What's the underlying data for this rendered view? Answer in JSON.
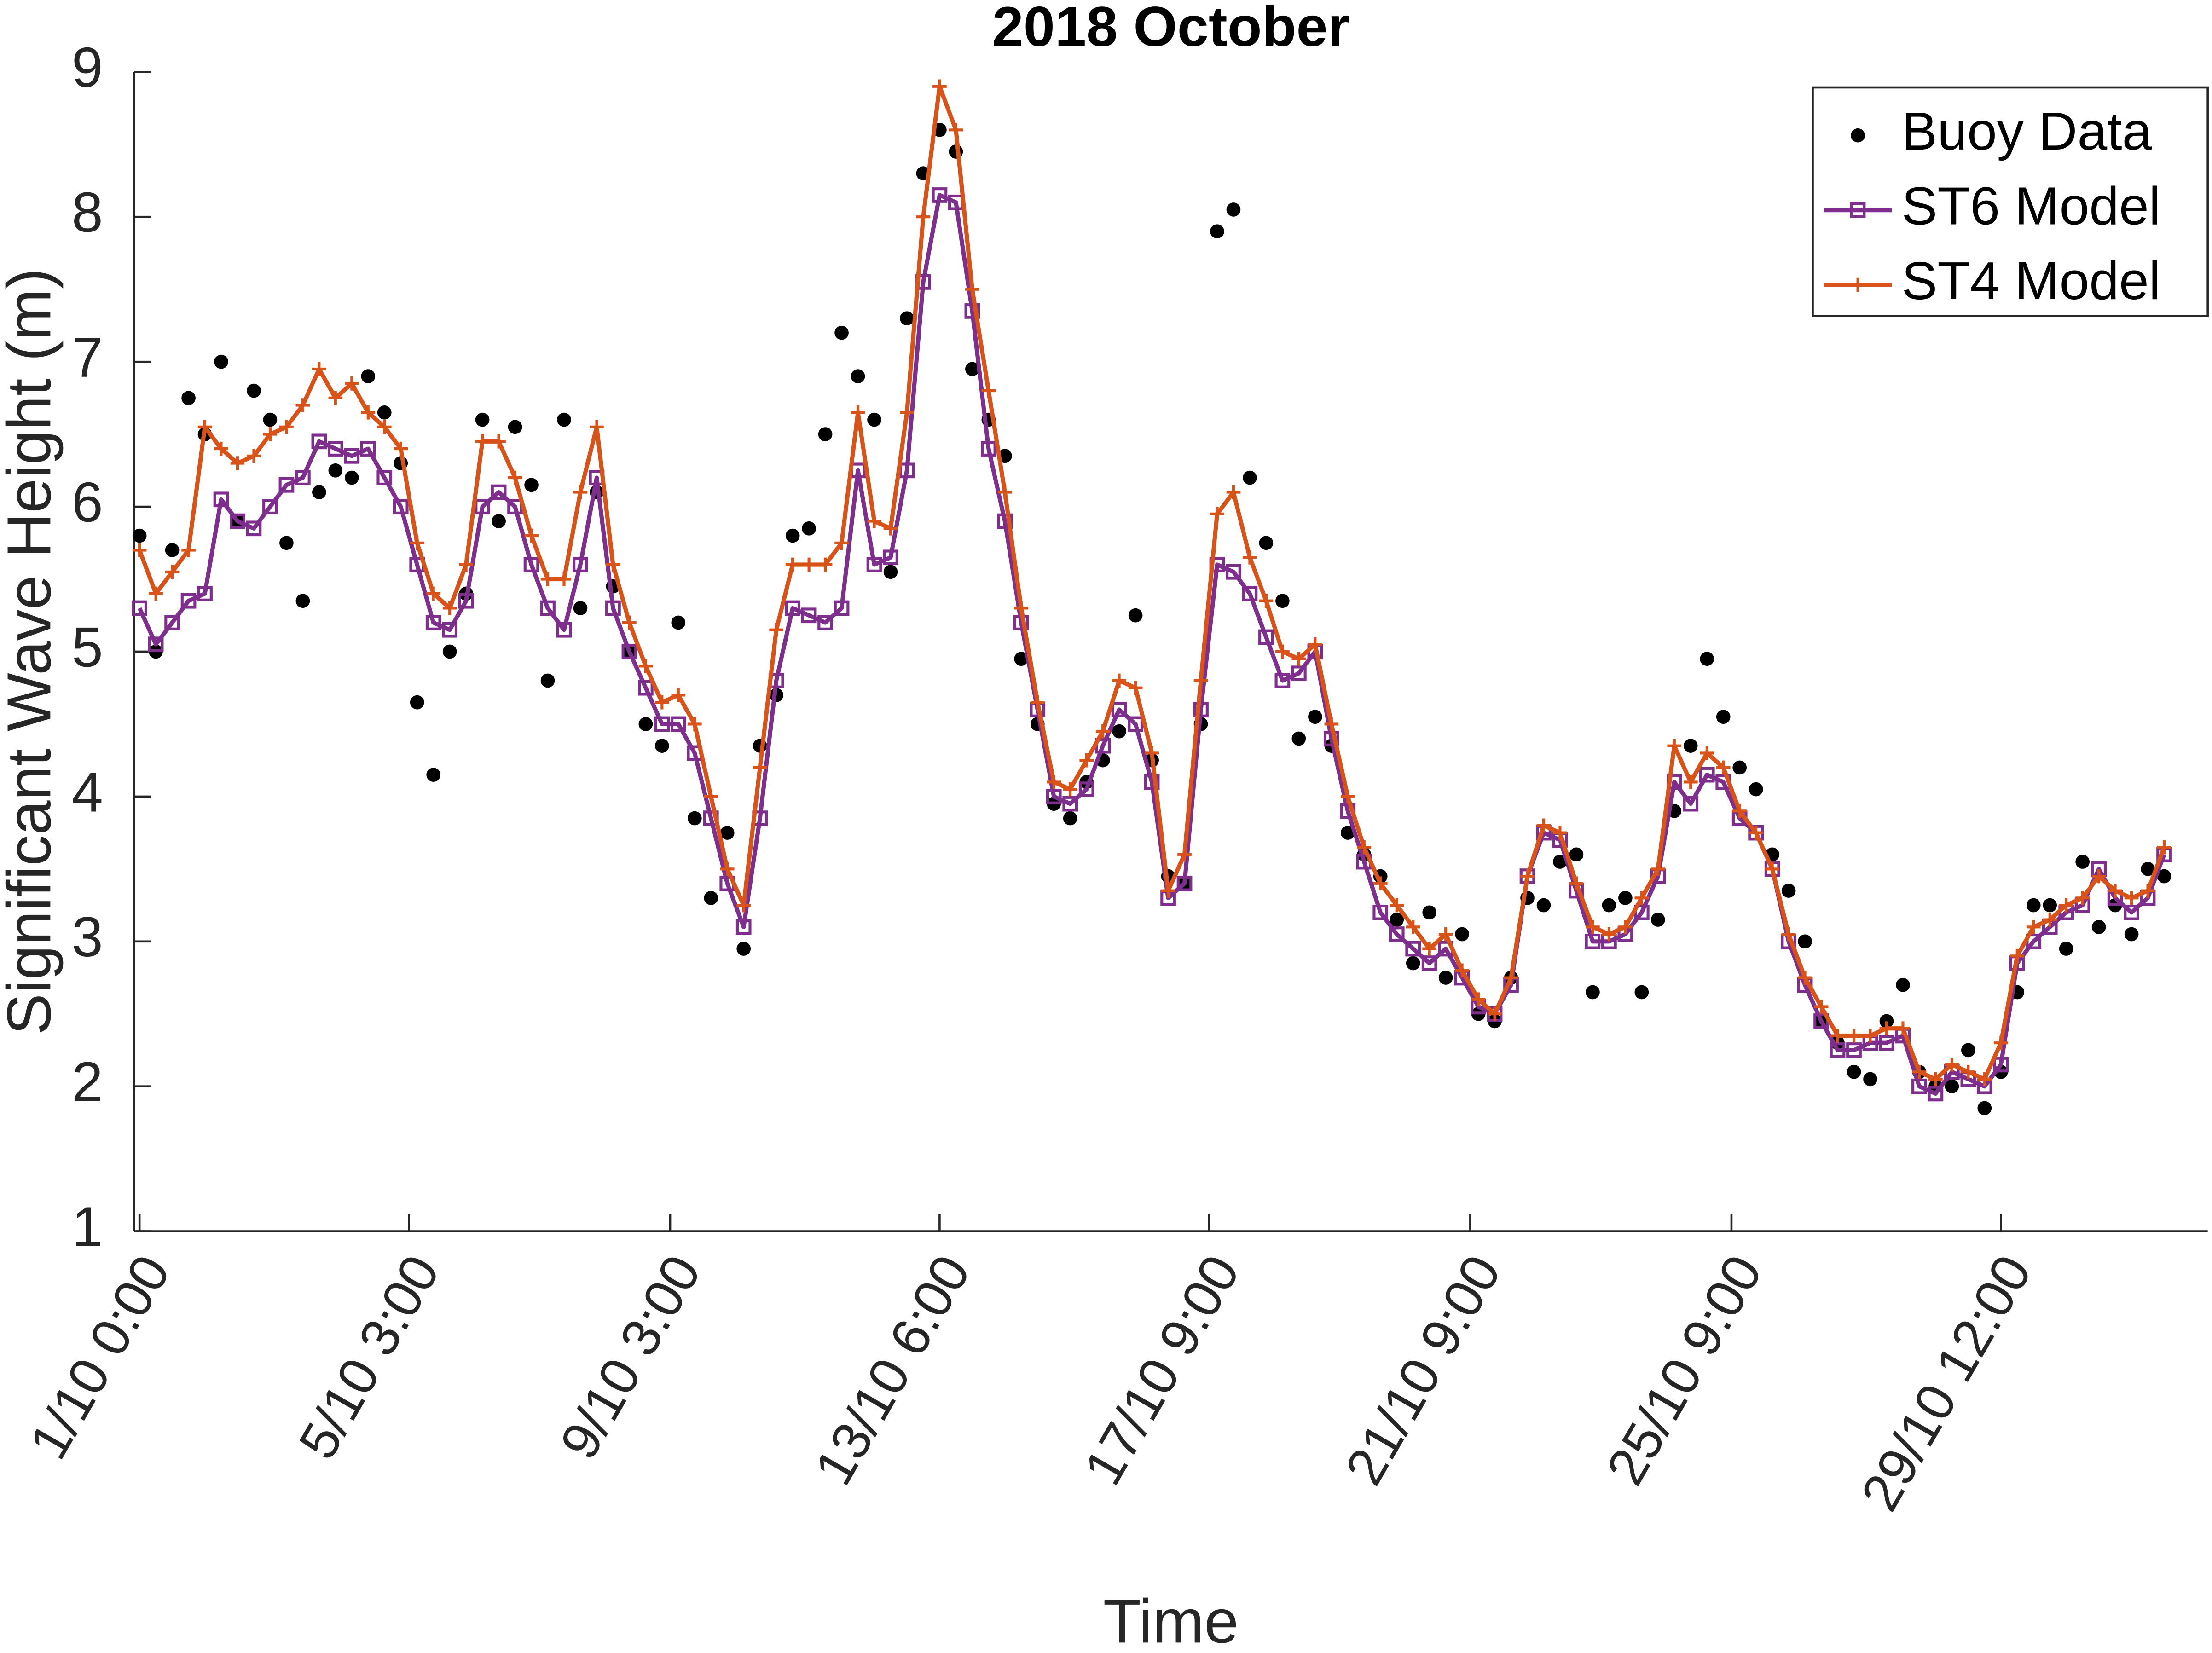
{
  "chart_data": {
    "type": "line",
    "title": "2018 October",
    "x_label": "Time",
    "y_label": "Significant Wave Height (m)",
    "x": [
      0,
      6,
      12,
      18,
      24,
      30,
      36,
      42,
      48,
      54,
      60,
      66,
      72,
      78,
      84,
      90,
      96,
      102,
      108,
      114,
      120,
      126,
      132,
      138,
      144,
      150,
      156,
      162,
      168,
      174,
      180,
      186,
      192,
      198,
      204,
      210,
      216,
      222,
      228,
      234,
      240,
      246,
      252,
      258,
      264,
      270,
      276,
      282,
      288,
      294,
      300,
      306,
      312,
      318,
      324,
      330,
      336,
      342,
      348,
      354,
      360,
      366,
      372,
      378,
      384,
      390,
      396,
      402,
      408,
      414,
      420,
      426,
      432,
      438,
      444,
      450,
      456,
      462,
      468,
      474,
      480,
      486,
      492,
      498,
      504,
      510,
      516,
      522,
      528,
      534,
      540,
      546,
      552,
      558,
      564,
      570,
      576,
      582,
      588,
      594,
      600,
      606,
      612,
      618,
      624,
      630,
      636,
      642,
      648,
      654,
      660,
      666,
      672,
      678,
      684,
      690,
      696,
      702,
      708,
      714,
      720,
      726,
      732,
      738,
      744
    ],
    "series": [
      {
        "name": "Buoy Data",
        "color": "#000000",
        "marker": "dot",
        "line": false,
        "values": [
          5.8,
          5.0,
          5.7,
          6.75,
          6.5,
          7.0,
          5.9,
          6.8,
          6.6,
          5.75,
          5.35,
          6.1,
          6.25,
          6.2,
          6.9,
          6.65,
          6.3,
          4.65,
          4.15,
          5.0,
          5.4,
          6.6,
          5.9,
          6.55,
          6.15,
          4.8,
          6.6,
          5.3,
          6.1,
          5.45,
          5.0,
          4.5,
          4.35,
          5.2,
          3.85,
          3.3,
          3.75,
          2.95,
          4.35,
          4.7,
          5.8,
          5.85,
          6.5,
          7.2,
          6.9,
          6.6,
          5.55,
          7.3,
          8.3,
          8.6,
          8.45,
          6.95,
          6.6,
          6.35,
          4.95,
          4.5,
          3.95,
          3.85,
          4.1,
          4.25,
          4.45,
          5.25,
          4.25,
          3.45,
          3.4,
          4.5,
          7.9,
          8.05,
          6.2,
          5.75,
          5.35,
          4.4,
          4.55,
          4.35,
          3.75,
          3.6,
          3.45,
          3.15,
          2.85,
          3.2,
          2.75,
          3.05,
          2.5,
          2.45,
          2.75,
          3.3,
          3.25,
          3.55,
          3.6,
          2.65,
          3.25,
          3.3,
          2.65,
          3.15,
          3.9,
          4.35,
          4.95,
          4.55,
          4.2,
          4.05,
          3.6,
          3.35,
          3.0,
          2.45,
          2.3,
          2.1,
          2.05,
          2.45,
          2.7,
          2.1,
          2.0,
          2.0,
          2.25,
          1.85,
          2.1,
          2.65,
          3.25,
          3.25,
          2.95,
          3.55,
          3.1,
          3.25,
          3.05,
          3.5,
          3.45
        ]
      },
      {
        "name": "ST6 Model",
        "color": "#7e2f8e",
        "marker": "square",
        "line": true,
        "values": [
          5.3,
          5.05,
          5.2,
          5.35,
          5.4,
          6.05,
          5.9,
          5.85,
          6.0,
          6.15,
          6.2,
          6.45,
          6.4,
          6.35,
          6.4,
          6.2,
          6.0,
          5.6,
          5.2,
          5.15,
          5.35,
          6.0,
          6.1,
          6.0,
          5.6,
          5.3,
          5.15,
          5.6,
          6.2,
          5.3,
          5.0,
          4.75,
          4.5,
          4.5,
          4.3,
          3.85,
          3.4,
          3.1,
          3.85,
          4.8,
          5.3,
          5.25,
          5.2,
          5.3,
          6.25,
          5.6,
          5.65,
          6.25,
          7.55,
          8.15,
          8.1,
          7.35,
          6.4,
          5.9,
          5.2,
          4.6,
          4.0,
          3.95,
          4.05,
          4.35,
          4.6,
          4.5,
          4.1,
          3.3,
          3.4,
          4.6,
          5.6,
          5.55,
          5.4,
          5.1,
          4.8,
          4.85,
          5.0,
          4.4,
          3.9,
          3.55,
          3.2,
          3.05,
          2.95,
          2.85,
          2.95,
          2.75,
          2.55,
          2.5,
          2.7,
          3.45,
          3.75,
          3.7,
          3.35,
          3.0,
          3.0,
          3.05,
          3.2,
          3.45,
          4.1,
          3.95,
          4.15,
          4.1,
          3.85,
          3.75,
          3.5,
          3.0,
          2.7,
          2.45,
          2.25,
          2.25,
          2.3,
          2.3,
          2.35,
          2.0,
          1.95,
          2.1,
          2.05,
          2.0,
          2.15,
          2.85,
          3.0,
          3.1,
          3.2,
          3.25,
          3.5,
          3.3,
          3.2,
          3.3,
          3.6
        ]
      },
      {
        "name": "ST4 Model",
        "color": "#d95319",
        "marker": "plus",
        "line": true,
        "values": [
          5.7,
          5.4,
          5.55,
          5.7,
          6.55,
          6.4,
          6.3,
          6.35,
          6.5,
          6.55,
          6.7,
          6.95,
          6.75,
          6.85,
          6.65,
          6.55,
          6.4,
          5.75,
          5.4,
          5.3,
          5.6,
          6.45,
          6.45,
          6.2,
          5.8,
          5.5,
          5.5,
          6.1,
          6.55,
          5.6,
          5.2,
          4.9,
          4.65,
          4.7,
          4.5,
          4.0,
          3.5,
          3.25,
          4.2,
          5.15,
          5.6,
          5.6,
          5.6,
          5.75,
          6.65,
          5.9,
          5.85,
          6.65,
          8.0,
          8.9,
          8.6,
          7.5,
          6.8,
          6.1,
          5.3,
          4.65,
          4.1,
          4.05,
          4.25,
          4.45,
          4.8,
          4.75,
          4.3,
          3.35,
          3.6,
          4.8,
          5.95,
          6.1,
          5.65,
          5.35,
          5.0,
          4.95,
          5.05,
          4.5,
          4.0,
          3.65,
          3.4,
          3.25,
          3.1,
          2.95,
          3.05,
          2.8,
          2.6,
          2.5,
          2.75,
          3.45,
          3.8,
          3.75,
          3.4,
          3.1,
          3.05,
          3.1,
          3.3,
          3.5,
          4.35,
          4.1,
          4.3,
          4.2,
          3.9,
          3.75,
          3.5,
          3.05,
          2.75,
          2.55,
          2.35,
          2.35,
          2.35,
          2.4,
          2.4,
          2.1,
          2.05,
          2.15,
          2.1,
          2.05,
          2.3,
          2.9,
          3.1,
          3.15,
          3.25,
          3.3,
          3.45,
          3.35,
          3.3,
          3.35,
          3.65
        ]
      }
    ],
    "xlim": [
      -2,
      760
    ],
    "xticks": [
      {
        "value": 0,
        "label": "1/10 0:00"
      },
      {
        "value": 99,
        "label": "5/10 3:00"
      },
      {
        "value": 195,
        "label": "9/10 3:00"
      },
      {
        "value": 294,
        "label": "13/10 6:00"
      },
      {
        "value": 393,
        "label": "17/10 9:00"
      },
      {
        "value": 489,
        "label": "21/10 9:00"
      },
      {
        "value": 585,
        "label": "25/10 9:00"
      },
      {
        "value": 684,
        "label": "29/10 12:00"
      }
    ],
    "ylim": [
      1,
      9
    ],
    "yticks": [
      1,
      2,
      3,
      4,
      5,
      6,
      7,
      8,
      9
    ],
    "legend": "northeast",
    "grid": false
  }
}
